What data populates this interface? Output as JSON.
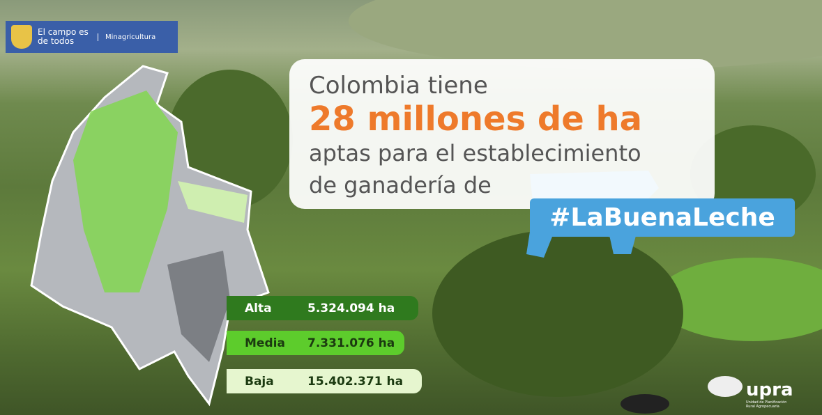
{
  "logo": {
    "slogan": "El campo es de todos",
    "ministry": "Minagricultura"
  },
  "headline": {
    "line1": "Colombia tiene",
    "line2": "28 millones de ha",
    "line3": "aptas para el establecimiento",
    "line4": "de ganadería de",
    "hashtag": "#LaBuenaLeche"
  },
  "levels": [
    {
      "label": "Alta",
      "value": "5.324.094 ha"
    },
    {
      "label": "Media",
      "value": "7.331.076 ha"
    },
    {
      "label": "Baja",
      "value": "15.402.371 ha"
    }
  ],
  "footer": {
    "brand": "upra",
    "subtitle": "Unidad de Planificación Rural Agropecuaria"
  }
}
